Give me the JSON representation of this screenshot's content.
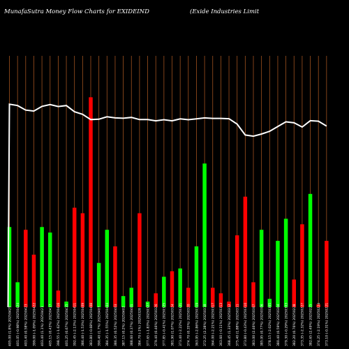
{
  "header": {
    "title_left": "MunafaSutra  Money Flow  Charts for EXIDEIND",
    "title_right": "(Exide    Industries Limit"
  },
  "colors": {
    "background": "#000000",
    "up": "#00ff00",
    "down": "#ff0000",
    "grid": "#a0521f",
    "price_line": "#ffffff"
  },
  "chart_data": {
    "type": "bar",
    "title": "MunafaSutra  Money Flow  Charts for EXIDEIND",
    "grid": true,
    "categories": [
      "405.00 (1.8%) 20250425",
      "401.05 (-0.98%) 20250424",
      "403.40 (0.58%) 20250423",
      "399.00 (-1.09%) 20250422",
      "403.40 (1.1%) 20250421",
      "405.15 (0.43%) 20250417",
      "398.55 (-1.62%) 20250416",
      "401.25 (0.67%) 20250415",
      "392.45 (-2.13%) 20250411",
      "386.40 (-1.53%) 20250409",
      "383.80 (-0.68%) 20250408",
      "390.40 (1.7%) 20250407",
      "384.35 (-1.55%) 20250404",
      "386.35 (0.52%) 20250403",
      "387.15 (0.2%) 20250402",
      "388.60 (0.37%) 20250401",
      "384.70 (-1%) 20250328",
      "377.65 (-1.83%) 20250327",
      "379.40 (0.46%) 20250326",
      "377.85 (-0.41%) 20250325",
      "381.90 (1.07%) 20250324",
      "373.40 (-2.22%) 20250321",
      "374.70 (0.35%) 20250320",
      "363.95 (-2.86%) 20250319",
      "372.25 (2.28%) 20250318",
      "364.00 (-2.21%) 20250317",
      "363.60 (-0.11%) 20250313",
      "368.45 (1.33%) 20250312",
      "375.40 (1.88%) 20250311",
      "373.80 (-0.43%) 20250310",
      "383.00 (2.46%) 20250307",
      "385.95 (0.77%) 20250306",
      "378.15 (-2.02%) 20250305",
      "380.40 (0.59%) 20250304",
      "379.30 (-0.29%) 20250303",
      "382.20 (0.76%) 20250228",
      "373.35 (-2.32%) 20250227",
      "382.65 (2.49%) 20250225",
      "374.25 (-2.19%) 20250224",
      "373.10 (-0.31%) 20250221"
    ],
    "ylim": [
      0,
      100
    ],
    "series": [
      {
        "role": "money-flow",
        "values": [
          29,
          9,
          28,
          19,
          29,
          27,
          6,
          2,
          36,
          34,
          76,
          16,
          28,
          22,
          4,
          7,
          34,
          2,
          5,
          11,
          13,
          14,
          7,
          22,
          52,
          7,
          5,
          2,
          26,
          40,
          9,
          28,
          3,
          24,
          32,
          10,
          30,
          41,
          1,
          24
        ],
        "direction": [
          "up",
          "up",
          "down",
          "down",
          "up",
          "up",
          "down",
          "up",
          "down",
          "down",
          "down",
          "up",
          "up",
          "down",
          "up",
          "up",
          "down",
          "up",
          "down",
          "up",
          "down",
          "up",
          "down",
          "up",
          "up",
          "down",
          "down",
          "down",
          "down",
          "down",
          "down",
          "up",
          "up",
          "up",
          "up",
          "down",
          "down",
          "up",
          "down",
          "down"
        ]
      },
      {
        "role": "price",
        "values": [
          386,
          385.2,
          382.4,
          381.8,
          384.7,
          385.8,
          384.6,
          385.2,
          381.4,
          379.8,
          376.6,
          376.8,
          378.3,
          377.6,
          377.4,
          377.9,
          376.6,
          376.6,
          375.8,
          376.5,
          375.8,
          377,
          376.5,
          377,
          377.6,
          377.3,
          377.3,
          377.1,
          373.8,
          367.1,
          366.4,
          367.7,
          369.4,
          372.3,
          375.2,
          374.6,
          372,
          375.9,
          375.6,
          372.6
        ]
      }
    ]
  }
}
